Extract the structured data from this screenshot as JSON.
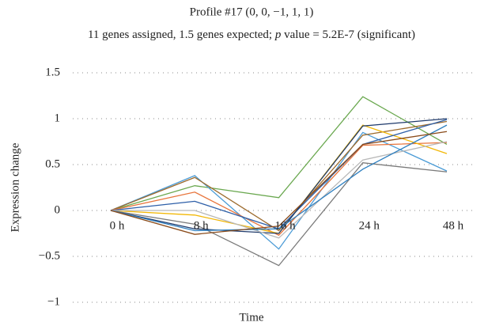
{
  "chart_data": {
    "type": "line",
    "title": "Profile #17 (0, 0, −1, 1, 1)",
    "subtitle": [
      "11 genes assigned, 1.5 genes expected; ",
      "p",
      " value = 5.2E-7 (significant)"
    ],
    "x_label": "Time",
    "y_label": "Expression change",
    "categories": [
      "0 h",
      "8 h",
      "16 h",
      "24 h",
      "48 h"
    ],
    "ylim": [
      -1,
      1.5
    ],
    "yticks": [
      1.5,
      1,
      0.5,
      0,
      {
        "value": -0.5,
        "label": "−0.5"
      },
      {
        "value": -1,
        "label": "−1"
      }
    ],
    "grid": true,
    "series": [
      {
        "color": "#6aa84f",
        "values": [
          0,
          0.27,
          0.14,
          1.24,
          0.72
        ]
      },
      {
        "color": "#4a9bd6",
        "values": [
          0,
          0.38,
          -0.42,
          0.85,
          0.43
        ]
      },
      {
        "color": "#9c6a2c",
        "values": [
          0,
          0.36,
          -0.22,
          0.82,
          0.97
        ]
      },
      {
        "color": "#e8743b",
        "values": [
          0,
          0.2,
          -0.27,
          0.71,
          0.74
        ]
      },
      {
        "color": "#f2b705",
        "values": [
          0,
          -0.05,
          -0.25,
          0.93,
          0.62
        ]
      },
      {
        "color": "#7a7a7a",
        "values": [
          0,
          -0.15,
          -0.6,
          0.52,
          0.42
        ]
      },
      {
        "color": "#2e5fa8",
        "values": [
          0,
          0.1,
          -0.2,
          0.72,
          0.99
        ]
      },
      {
        "color": "#1f3a6b",
        "values": [
          0,
          -0.2,
          -0.25,
          0.92,
          1.0
        ]
      },
      {
        "color": "#b8b8b8",
        "values": [
          0,
          0.0,
          -0.3,
          0.55,
          0.75
        ]
      },
      {
        "color": "#2f80c0",
        "values": [
          0,
          -0.22,
          -0.2,
          0.45,
          0.93
        ]
      },
      {
        "color": "#8a4b1a",
        "values": [
          0,
          -0.26,
          -0.17,
          0.72,
          0.86
        ]
      }
    ]
  }
}
